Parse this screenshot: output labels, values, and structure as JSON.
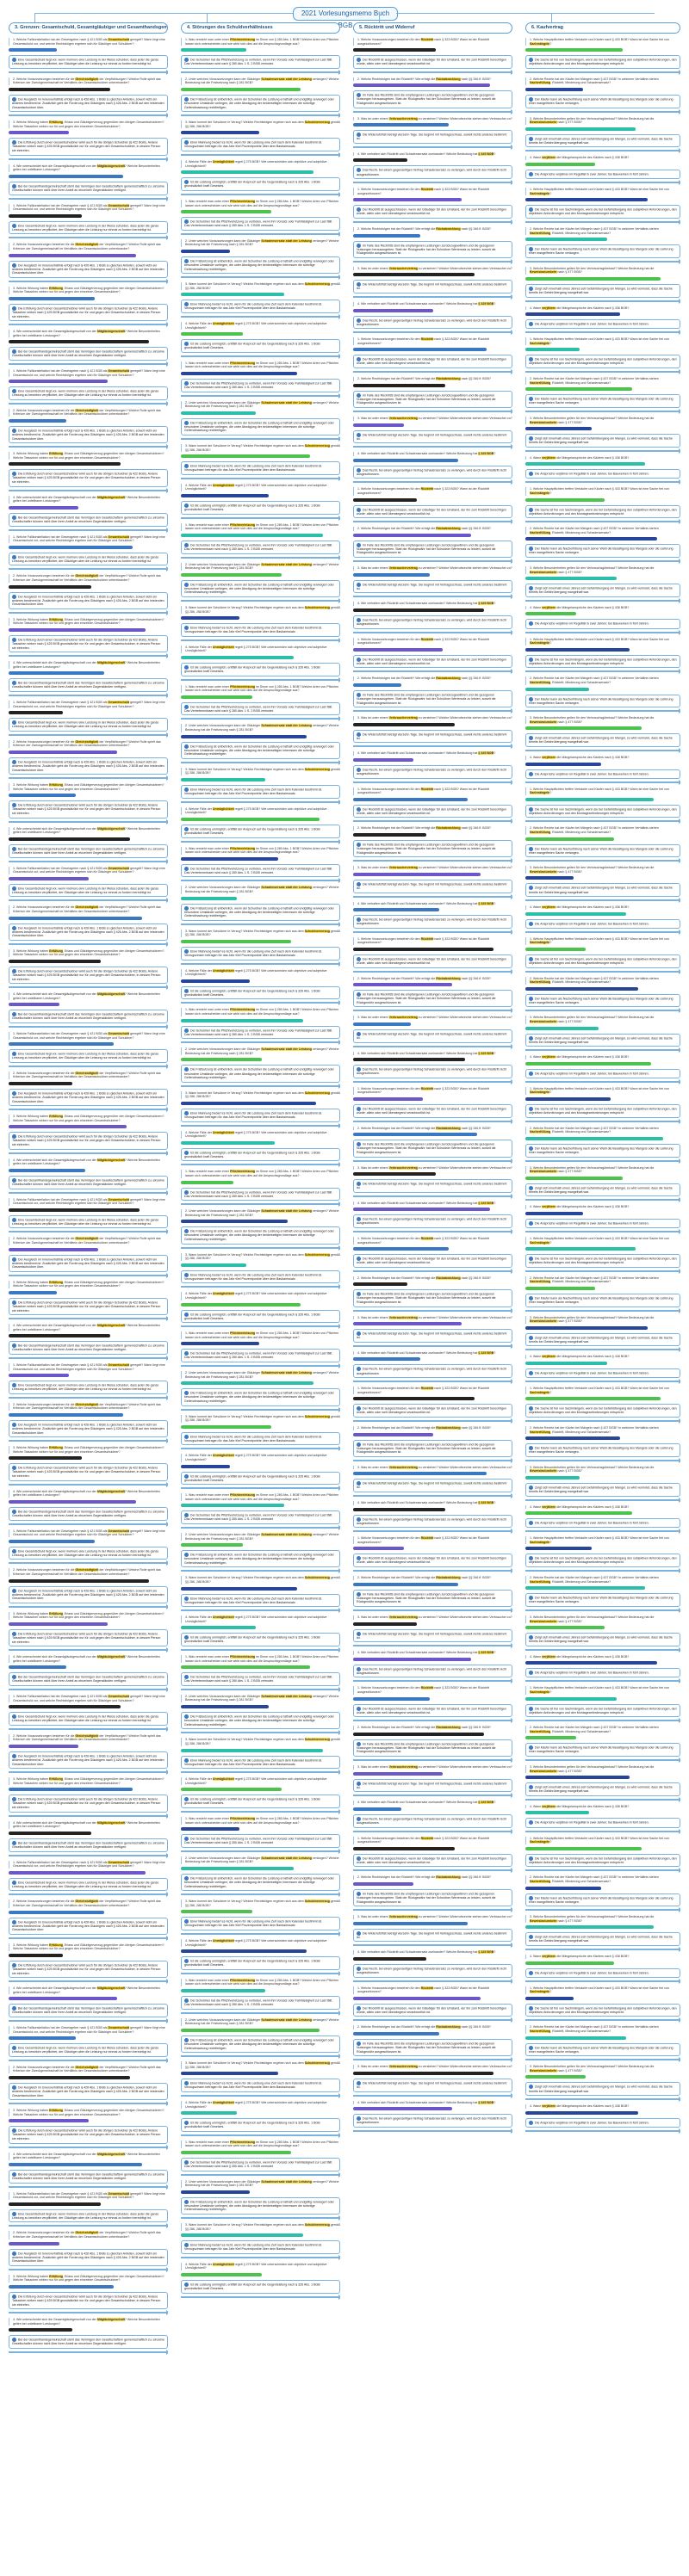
{
  "title": "2021 Vorlesungsmemo Buch BGB",
  "columns": [
    {
      "head": "3. Grenzen: Gesamtschuld, Gesamtgläubiger und Gesamthandsgemeinschaft",
      "blocks": [
        {
          "text": "1. Welche Fallkonstellation hat der Gesetzgeber nach § 421 BGB als Gesamtschuld geregelt? Wann liegt eine Gesamtschuld vor, und welche Rechtsfolgen ergeben sich für Gläubiger und Schuldner?",
          "highlight": "Gesamtschuld"
        },
        {
          "text": "Eine Gesamtschuld liegt vor, wenn mehrere eine Leistung in der Weise schulden, dass jeder die ganze Leistung zu bewirken verpflichtet, der Gläubiger aber die Leistung nur einmal zu fordern berechtigt ist.",
          "highlight": "Leistung"
        },
        {
          "text": "2. Welche Voraussetzungen bestehen für die Gleichstufigkeit der Verpflichtungen? Welche Rolle spielt das Kriterium der Zweckgemeinschaft im Verhältnis der Gesamtschuldner untereinander?",
          "highlight": "Gleichstufigkeit"
        },
        {
          "text": "Der Ausgleich im Innenverhältnis erfolgt nach § 426 Abs. 1 BGB zu gleichen Anteilen, soweit nicht ein anderes bestimmt ist. Zusätzlich geht die Forderung des Gläubigers nach § 426 Abs. 2 BGB auf den leistenden Gesamtschuldner über.",
          "highlight": "Innenverhältnis"
        },
        {
          "text": "3. Welche Wirkung haben Erfüllung, Erlass und Gläubigerverzug gegenüber den übrigen Gesamtschuldnern? Welche Tatsachen wirken nur für und gegen den einzelnen Gesamtschuldner?",
          "highlight": "Erfüllung"
        },
        {
          "text": "Die Erfüllung durch einen Gesamtschuldner wirkt auch für die übrigen Schuldner (§ 422 BGB). Andere Tatsachen wirken nach § 425 BGB grundsätzlich nur für und gegen den Gesamtschuldner, in dessen Person sie eintreten.",
          "highlight": "§ 422 BGB"
        },
        {
          "text": "4. Wie unterscheidet sich die Gesamtgläubigerschaft von der Mitgläubigerschaft? Welche Besonderheiten gelten bei unteilbaren Leistungen?",
          "highlight": "Mitgläubigerschaft"
        },
        {
          "text": "Bei der Gesamthandsgemeinschaft steht das Vermögen den Gesellschaftern gemeinschaftlich zu; einzelne Gesellschafter können nicht über ihren Anteil an einzelnen Gegenständen verfügen.",
          "highlight": "Gesamthandsgemeinschaft"
        }
      ]
    },
    {
      "head": "4. Störungen des Schuldverhältnisses",
      "blocks": [
        {
          "text": "1. Was versteht man unter einer Pflichtverletzung im Sinne von § 280 Abs. 1 BGB? Welche Arten von Pflichten lassen sich unterscheiden und wie wirkt sich dies auf die Anspruchsgrundlage aus?",
          "highlight": "Pflichtverletzung"
        },
        {
          "text": "Der Schuldner hat die Pflichtverletzung zu vertreten, wenn ihm Vorsatz oder Fahrlässigkeit zur Last fällt. Das Vertretenmüssen wird nach § 280 Abs. 1 S. 2 BGB vermutet.",
          "highlight": "Vertretenmüssen"
        },
        {
          "text": "2. Unter welchen Voraussetzungen kann der Gläubiger Schadensersatz statt der Leistung verlangen? Welche Bedeutung hat die Fristsetzung nach § 281 BGB?",
          "highlight": "Schadensersatz statt der Leistung"
        },
        {
          "text": "Die Fristsetzung ist entbehrlich, wenn der Schuldner die Leistung ernsthaft und endgültig verweigert oder besondere Umstände vorliegen, die unter Abwägung der beiderseitigen Interessen die sofortige Geltendmachung rechtfertigen.",
          "highlight": "entbehrlich"
        },
        {
          "text": "3. Wann kommt der Schuldner in Verzug? Welche Rechtsfolgen ergeben sich aus dem Schuldnerverzug gemäß §§ 286, 288 BGB?",
          "highlight": "Schuldnerverzug"
        },
        {
          "text": "Einer Mahnung bedarf es nicht, wenn für die Leistung eine Zeit nach dem Kalender bestimmt ist. Verzugszinsen betragen für das Jahr fünf Prozentpunkte über dem Basiszinssatz.",
          "highlight": "Mahnung"
        },
        {
          "text": "4. Welche Fälle der Unmöglichkeit regelt § 275 BGB? Wie unterscheiden sich objektive und subjektive Unmöglichkeit?",
          "highlight": "Unmöglichkeit"
        },
        {
          "text": "Ist die Leistung unmöglich, entfällt der Anspruch auf die Gegenleistung nach § 326 Abs. 1 BGB grundsätzlich kraft Gesetzes.",
          "highlight": "Gegenleistung"
        }
      ]
    },
    {
      "head": "5. Rücktritt und Widerruf",
      "blocks": [
        {
          "text": "1. Welche Voraussetzungen bestehen für den Rücktritt nach § 323 BGB? Wann ist der Rücktritt ausgeschlossen?",
          "highlight": "Rücktritt"
        },
        {
          "text": "Der Rücktritt ist ausgeschlossen, wenn der Gläubiger für den Umstand, der ihn zum Rücktritt berechtigen würde, allein oder weit überwiegend verantwortlich ist.",
          "highlight": "ausgeschlossen"
        },
        {
          "text": "2. Welche Rechtsfolgen hat der Rücktritt? Wie erfolgt die Rückabwicklung nach §§ 346 ff. BGB?",
          "highlight": "Rückabwicklung"
        },
        {
          "text": "Im Falle des Rücktritts sind die empfangenen Leistungen zurückzugewähren und die gezogenen Nutzungen herauszugeben. Statt der Rückgewähr hat der Schuldner Wertersatz zu leisten, soweit die Rückgewähr ausgeschlossen ist.",
          "highlight": "Wertersatz"
        },
        {
          "text": "3. Was ist unter einem Verbrauchervertrag zu verstehen? Welche Widerrufsrechte stehen dem Verbraucher zu?",
          "highlight": "Verbrauchervertrag"
        },
        {
          "text": "Die Widerrufsfrist beträgt vierzehn Tage. Sie beginnt mit Vertragsschluss, soweit nichts anderes bestimmt ist.",
          "highlight": "vierzehn Tage"
        },
        {
          "text": "4. Wie verhalten sich Rücktritt und Schadensersatz zueinander? Welche Bedeutung hat § 325 BGB?",
          "highlight": "§ 325 BGB"
        },
        {
          "text": "Das Recht, bei einem gegenseitigen Vertrag Schadensersatz zu verlangen, wird durch den Rücktritt nicht ausgeschlossen.",
          "highlight": "nicht ausgeschlossen"
        }
      ]
    },
    {
      "head": "6. Kaufvertrag",
      "blocks": [
        {
          "text": "1. Welche Hauptpflichten treffen Verkäufer und Käufer nach § 433 BGB? Wann ist eine Sache frei von Sachmängeln?",
          "highlight": "Sachmängeln"
        },
        {
          "text": "Die Sache ist frei von Sachmängeln, wenn sie bei Gefahrübergang den subjektiven Anforderungen, den objektiven Anforderungen und den Montageanforderungen entspricht.",
          "highlight": "Gefahrübergang"
        },
        {
          "text": "2. Welche Rechte hat der Käufer bei Mängeln nach § 437 BGB? In welchem Verhältnis stehen Nacherfüllung, Rücktritt, Minderung und Schadensersatz?",
          "highlight": "Nacherfüllung"
        },
        {
          "text": "Der Käufer kann als Nacherfüllung nach seiner Wahl die Beseitigung des Mangels oder die Lieferung einer mangelfreien Sache verlangen.",
          "highlight": "Wahl"
        },
        {
          "text": "3. Welche Besonderheiten gelten für den Verbrauchsgüterkauf? Welche Bedeutung hat die Beweislastumkehr nach § 477 BGB?",
          "highlight": "Beweislastumkehr"
        },
        {
          "text": "Zeigt sich innerhalb eines Jahres seit Gefahrübergang ein Mangel, so wird vermutet, dass die Sache bereits bei Gefahrübergang mangelhaft war.",
          "highlight": "eines Jahres"
        },
        {
          "text": "4. Wann verjähren die Mängelansprüche des Käufers nach § 438 BGB?",
          "highlight": "verjähren"
        },
        {
          "text": "Die Ansprüche verjähren im Regelfall in zwei Jahren; bei Bauwerken in fünf Jahren.",
          "highlight": "zwei Jahren"
        }
      ]
    }
  ]
}
